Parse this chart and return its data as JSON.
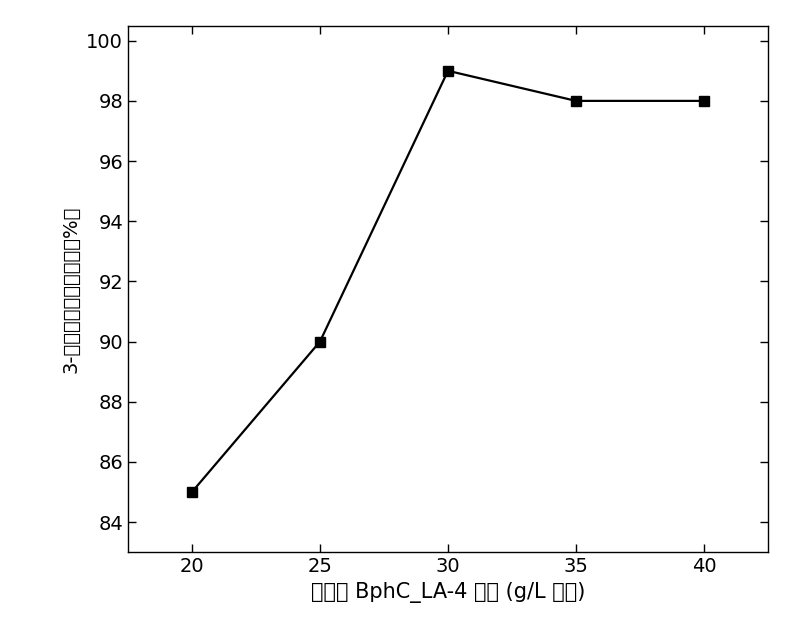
{
  "x": [
    20,
    25,
    30,
    35,
    40
  ],
  "y": [
    85,
    90,
    99,
    98,
    98
  ],
  "xlim": [
    17.5,
    42.5
  ],
  "ylim": [
    83.0,
    100.5
  ],
  "xticks": [
    20,
    25,
    30,
    35,
    40
  ],
  "yticks": [
    84,
    86,
    88,
    90,
    92,
    94,
    96,
    98,
    100
  ],
  "xlabel": "工程菌 BphC_LA-4 干重 (g/L 干重)",
  "ylabel": "3-甲基儿茶酚的转化率（%）",
  "line_color": "#000000",
  "marker_style": "s",
  "marker_size": 7,
  "marker_color": "#000000",
  "linewidth": 1.6,
  "background_color": "#ffffff",
  "xlabel_fontsize": 15,
  "ylabel_fontsize": 14,
  "tick_fontsize": 14
}
